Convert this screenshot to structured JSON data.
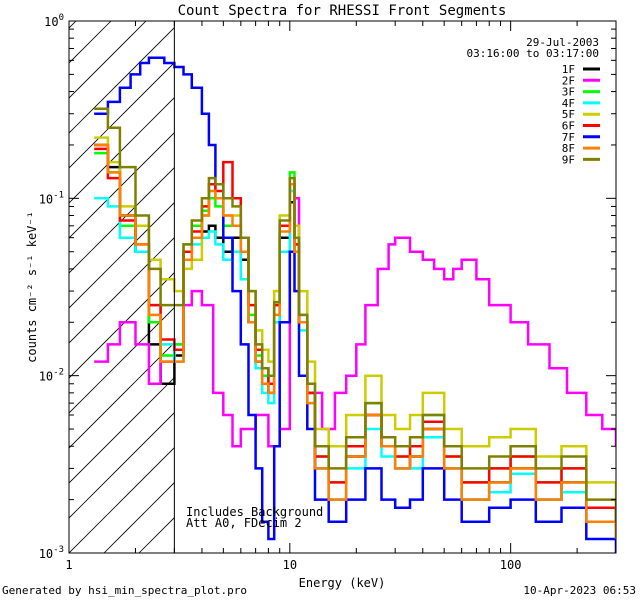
{
  "chart_data": {
    "type": "line",
    "title": "Count Spectra for RHESSI Front Segments",
    "xlabel": "Energy (keV)",
    "ylabel": "counts cm⁻² s⁻¹ keV⁻¹",
    "xscale": "log",
    "yscale": "log",
    "xlim": [
      1,
      300
    ],
    "ylim": [
      0.001,
      1.0
    ],
    "x_ticks": [
      {
        "value": 1,
        "label": "1"
      },
      {
        "value": 10,
        "label": "10"
      },
      {
        "value": 100,
        "label": "100"
      }
    ],
    "y_ticks": [
      {
        "value": 1,
        "mant": "10",
        "exp": "0"
      },
      {
        "value": 0.1,
        "mant": "10",
        "exp": "-1"
      },
      {
        "value": 0.01,
        "mant": "10",
        "exp": "-2"
      },
      {
        "value": 0.001,
        "mant": "10",
        "exp": "-3"
      }
    ],
    "info": {
      "date": "29-Jul-2003",
      "time_range": "03:16:00 to 03:17:00"
    },
    "legend_position": "top-right",
    "annotations": {
      "background": "Includes Background",
      "attenuator": "Att A0, FDecim 2"
    },
    "hatch_region_xmax": 3,
    "series": [
      {
        "name": "1F",
        "color": "#000000",
        "x": [
          1.3,
          1.5,
          1.7,
          2.0,
          2.3,
          2.6,
          3.0,
          3.3,
          3.6,
          4.0,
          4.3,
          4.6,
          5.0,
          5.5,
          6.0,
          6.5,
          7.0,
          7.5,
          8.0,
          8.5,
          9.0,
          10.0,
          10.5,
          11.0,
          12.0,
          13.0,
          15.0,
          18.0,
          22.0,
          26.0,
          30.0,
          35.0,
          40.0,
          50.0,
          60.0,
          80.0,
          100.0,
          130.0,
          170.0,
          220.0,
          300.0
        ],
        "y": [
          0.2,
          0.15,
          0.08,
          0.05,
          0.015,
          0.009,
          0.013,
          0.05,
          0.06,
          0.065,
          0.07,
          0.06,
          0.05,
          0.06,
          0.045,
          0.02,
          0.012,
          0.009,
          0.008,
          0.02,
          0.06,
          0.095,
          0.05,
          0.02,
          0.008,
          0.003,
          0.002,
          0.0035,
          0.006,
          0.004,
          0.003,
          0.0035,
          0.005,
          0.003,
          0.002,
          0.0025,
          0.003,
          0.002,
          0.0025,
          0.0015,
          0.0012
        ]
      },
      {
        "name": "2F",
        "color": "#ff00ff",
        "x": [
          1.3,
          1.5,
          1.7,
          2.0,
          2.3,
          2.6,
          3.0,
          3.3,
          3.6,
          4.0,
          4.5,
          5.0,
          5.5,
          6.0,
          7.0,
          8.0,
          9.0,
          10.0,
          10.5,
          11.0,
          12.0,
          14.0,
          16.0,
          18.0,
          20.0,
          22.0,
          25.0,
          28.0,
          30.0,
          35.0,
          40.0,
          45.0,
          50.0,
          55.0,
          60.0,
          70.0,
          80.0,
          100.0,
          120.0,
          150.0,
          180.0,
          220.0,
          260.0,
          300.0
        ],
        "y": [
          0.012,
          0.015,
          0.02,
          0.015,
          0.009,
          0.012,
          0.015,
          0.025,
          0.03,
          0.025,
          0.008,
          0.006,
          0.004,
          0.005,
          0.006,
          0.004,
          0.005,
          0.12,
          0.1,
          0.02,
          0.008,
          0.005,
          0.008,
          0.01,
          0.015,
          0.025,
          0.04,
          0.055,
          0.06,
          0.05,
          0.045,
          0.04,
          0.035,
          0.04,
          0.045,
          0.035,
          0.025,
          0.02,
          0.015,
          0.011,
          0.008,
          0.006,
          0.005,
          0.004
        ]
      },
      {
        "name": "3F",
        "color": "#00ff00",
        "x": [
          1.3,
          1.5,
          1.7,
          2.0,
          2.3,
          2.6,
          3.0,
          3.3,
          3.6,
          4.0,
          4.3,
          4.6,
          5.0,
          5.5,
          6.0,
          6.5,
          7.0,
          7.5,
          8.0,
          8.5,
          9.0,
          10.0,
          10.5,
          11.0,
          12.0,
          13.0,
          15.0,
          18.0,
          22.0,
          26.0,
          30.0,
          35.0,
          40.0,
          50.0,
          60.0,
          80.0,
          100.0,
          130.0,
          170.0,
          220.0,
          300.0
        ],
        "y": [
          0.18,
          0.14,
          0.07,
          0.05,
          0.02,
          0.013,
          0.015,
          0.055,
          0.07,
          0.085,
          0.1,
          0.09,
          0.07,
          0.07,
          0.05,
          0.022,
          0.013,
          0.01,
          0.009,
          0.025,
          0.07,
          0.14,
          0.06,
          0.022,
          0.008,
          0.0035,
          0.0025,
          0.004,
          0.007,
          0.004,
          0.0035,
          0.004,
          0.006,
          0.0035,
          0.0025,
          0.003,
          0.0035,
          0.0025,
          0.003,
          0.0018,
          0.0014
        ]
      },
      {
        "name": "4F",
        "color": "#00ffff",
        "x": [
          1.3,
          1.5,
          1.7,
          2.0,
          2.3,
          2.6,
          3.0,
          3.3,
          3.6,
          4.0,
          4.3,
          4.6,
          5.0,
          5.5,
          6.0,
          6.5,
          7.0,
          7.5,
          8.0,
          8.5,
          9.0,
          10.0,
          10.5,
          11.0,
          12.0,
          13.0,
          15.0,
          18.0,
          22.0,
          26.0,
          30.0,
          35.0,
          40.0,
          50.0,
          60.0,
          80.0,
          100.0,
          130.0,
          170.0,
          220.0,
          300.0
        ],
        "y": [
          0.1,
          0.09,
          0.06,
          0.05,
          0.025,
          0.015,
          0.012,
          0.045,
          0.055,
          0.06,
          0.065,
          0.055,
          0.045,
          0.05,
          0.035,
          0.02,
          0.011,
          0.008,
          0.007,
          0.02,
          0.05,
          0.11,
          0.05,
          0.018,
          0.007,
          0.003,
          0.002,
          0.003,
          0.005,
          0.0035,
          0.003,
          0.003,
          0.0045,
          0.003,
          0.002,
          0.0022,
          0.0028,
          0.002,
          0.0022,
          0.0015,
          0.0011
        ]
      },
      {
        "name": "5F",
        "color": "#cccc00",
        "x": [
          1.3,
          1.5,
          1.7,
          2.0,
          2.3,
          2.6,
          3.0,
          3.3,
          3.6,
          4.0,
          4.3,
          4.6,
          5.0,
          5.5,
          6.0,
          6.5,
          7.0,
          7.5,
          8.0,
          8.5,
          9.0,
          10.0,
          10.5,
          11.0,
          12.0,
          13.0,
          15.0,
          18.0,
          22.0,
          26.0,
          30.0,
          35.0,
          40.0,
          50.0,
          60.0,
          80.0,
          100.0,
          130.0,
          170.0,
          220.0,
          300.0
        ],
        "y": [
          0.22,
          0.16,
          0.09,
          0.07,
          0.045,
          0.035,
          0.03,
          0.04,
          0.045,
          0.08,
          0.12,
          0.1,
          0.08,
          0.08,
          0.06,
          0.03,
          0.018,
          0.014,
          0.012,
          0.03,
          0.08,
          0.13,
          0.07,
          0.03,
          0.012,
          0.005,
          0.004,
          0.006,
          0.01,
          0.006,
          0.005,
          0.006,
          0.008,
          0.005,
          0.004,
          0.0045,
          0.005,
          0.0035,
          0.004,
          0.0025,
          0.002
        ]
      },
      {
        "name": "6F",
        "color": "#ff0000",
        "x": [
          1.3,
          1.5,
          1.7,
          2.0,
          2.3,
          2.6,
          3.0,
          3.3,
          3.6,
          4.0,
          4.3,
          4.6,
          5.0,
          5.5,
          6.0,
          6.5,
          7.0,
          7.5,
          8.0,
          8.5,
          9.0,
          10.0,
          10.5,
          11.0,
          12.0,
          13.0,
          15.0,
          18.0,
          22.0,
          26.0,
          30.0,
          35.0,
          40.0,
          50.0,
          60.0,
          80.0,
          100.0,
          130.0,
          170.0,
          220.0,
          300.0
        ],
        "y": [
          0.19,
          0.13,
          0.075,
          0.055,
          0.025,
          0.016,
          0.014,
          0.05,
          0.065,
          0.09,
          0.12,
          0.11,
          0.16,
          0.1,
          0.06,
          0.025,
          0.014,
          0.011,
          0.009,
          0.025,
          0.07,
          0.12,
          0.055,
          0.02,
          0.008,
          0.0035,
          0.0025,
          0.004,
          0.006,
          0.004,
          0.0035,
          0.004,
          0.0055,
          0.0035,
          0.0025,
          0.003,
          0.0035,
          0.0025,
          0.003,
          0.0018,
          0.0014
        ]
      },
      {
        "name": "7F",
        "color": "#0000ff",
        "x": [
          1.3,
          1.5,
          1.7,
          1.9,
          2.1,
          2.3,
          2.5,
          2.7,
          3.0,
          3.3,
          3.6,
          4.0,
          4.3,
          4.6,
          5.0,
          5.5,
          6.0,
          6.5,
          7.0,
          7.5,
          8.0,
          8.5,
          9.0,
          10.0,
          10.5,
          11.0,
          12.0,
          13.0,
          15.0,
          18.0,
          22.0,
          26.0,
          30.0,
          35.0,
          40.0,
          50.0,
          60.0,
          80.0,
          100.0,
          130.0,
          170.0,
          220.0,
          300.0
        ],
        "y": [
          0.3,
          0.35,
          0.42,
          0.5,
          0.58,
          0.62,
          0.62,
          0.58,
          0.55,
          0.5,
          0.42,
          0.3,
          0.2,
          0.12,
          0.06,
          0.03,
          0.015,
          0.006,
          0.003,
          0.0015,
          0.0012,
          0.004,
          0.02,
          0.05,
          0.03,
          0.01,
          0.005,
          0.002,
          0.0015,
          0.002,
          0.003,
          0.002,
          0.0018,
          0.002,
          0.003,
          0.002,
          0.0015,
          0.0018,
          0.002,
          0.0015,
          0.0018,
          0.0012,
          0.001
        ]
      },
      {
        "name": "8F",
        "color": "#ff8000",
        "x": [
          1.3,
          1.5,
          1.7,
          2.0,
          2.3,
          2.6,
          3.0,
          3.3,
          3.6,
          4.0,
          4.3,
          4.6,
          5.0,
          5.5,
          6.0,
          6.5,
          7.0,
          7.5,
          8.0,
          8.5,
          9.0,
          10.0,
          10.5,
          11.0,
          12.0,
          13.0,
          15.0,
          18.0,
          22.0,
          26.0,
          30.0,
          35.0,
          40.0,
          50.0,
          60.0,
          80.0,
          100.0,
          130.0,
          170.0,
          220.0,
          300.0
        ],
        "y": [
          0.2,
          0.14,
          0.08,
          0.055,
          0.022,
          0.012,
          0.012,
          0.045,
          0.06,
          0.08,
          0.11,
          0.1,
          0.08,
          0.07,
          0.05,
          0.02,
          0.012,
          0.009,
          0.008,
          0.022,
          0.065,
          0.12,
          0.05,
          0.02,
          0.007,
          0.003,
          0.002,
          0.0035,
          0.006,
          0.004,
          0.003,
          0.0035,
          0.005,
          0.003,
          0.002,
          0.0025,
          0.003,
          0.002,
          0.0025,
          0.0015,
          0.0012
        ]
      },
      {
        "name": "9F",
        "color": "#808000",
        "x": [
          1.3,
          1.5,
          1.7,
          2.0,
          2.3,
          2.6,
          3.0,
          3.3,
          3.6,
          4.0,
          4.3,
          4.6,
          5.0,
          5.5,
          6.0,
          6.5,
          7.0,
          7.5,
          8.0,
          8.5,
          9.0,
          10.0,
          10.5,
          11.0,
          12.0,
          13.0,
          15.0,
          18.0,
          22.0,
          26.0,
          30.0,
          35.0,
          40.0,
          50.0,
          60.0,
          80.0,
          100.0,
          130.0,
          170.0,
          220.0,
          300.0
        ],
        "y": [
          0.32,
          0.25,
          0.15,
          0.08,
          0.04,
          0.025,
          0.025,
          0.055,
          0.075,
          0.1,
          0.13,
          0.12,
          0.1,
          0.09,
          0.06,
          0.03,
          0.015,
          0.011,
          0.01,
          0.026,
          0.075,
          0.13,
          0.06,
          0.022,
          0.009,
          0.004,
          0.003,
          0.0045,
          0.007,
          0.0045,
          0.004,
          0.0045,
          0.006,
          0.004,
          0.003,
          0.0035,
          0.004,
          0.003,
          0.0035,
          0.002,
          0.0015
        ]
      }
    ]
  },
  "footer": {
    "generated_by": "Generated by hsi_min_spectra_plot.pro",
    "timestamp": "10-Apr-2023 06:53"
  }
}
